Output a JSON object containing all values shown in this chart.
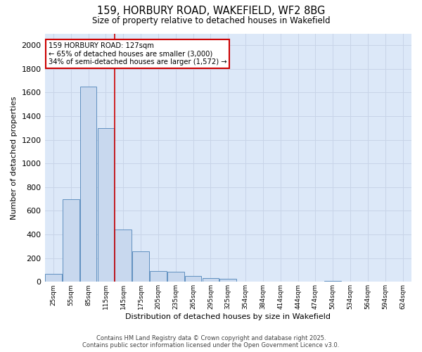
{
  "title1": "159, HORBURY ROAD, WAKEFIELD, WF2 8BG",
  "title2": "Size of property relative to detached houses in Wakefield",
  "xlabel": "Distribution of detached houses by size in Wakefield",
  "ylabel": "Number of detached properties",
  "categories": [
    "25sqm",
    "55sqm",
    "85sqm",
    "115sqm",
    "145sqm",
    "175sqm",
    "205sqm",
    "235sqm",
    "265sqm",
    "295sqm",
    "325sqm",
    "354sqm",
    "384sqm",
    "414sqm",
    "444sqm",
    "474sqm",
    "504sqm",
    "534sqm",
    "564sqm",
    "594sqm",
    "624sqm"
  ],
  "values": [
    65,
    700,
    1650,
    1300,
    440,
    255,
    90,
    85,
    50,
    30,
    25,
    0,
    0,
    0,
    0,
    0,
    10,
    0,
    0,
    0,
    0
  ],
  "bar_color": "#c8d8ee",
  "bar_edge_color": "#6090c0",
  "vline_x_idx": 3.5,
  "vline_color": "#cc0000",
  "annotation_text": "159 HORBURY ROAD: 127sqm\n← 65% of detached houses are smaller (3,000)\n34% of semi-detached houses are larger (1,572) →",
  "annotation_box_color": "#ffffff",
  "annotation_box_edge": "#cc0000",
  "ylim": [
    0,
    2100
  ],
  "yticks": [
    0,
    200,
    400,
    600,
    800,
    1000,
    1200,
    1400,
    1600,
    1800,
    2000
  ],
  "grid_color": "#c8d4e8",
  "bg_color": "#ffffff",
  "plot_bg_color": "#dce8f8",
  "footer1": "Contains HM Land Registry data © Crown copyright and database right 2025.",
  "footer2": "Contains public sector information licensed under the Open Government Licence v3.0."
}
